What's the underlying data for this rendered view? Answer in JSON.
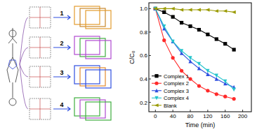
{
  "chart_data": {
    "type": "line",
    "xlabel": "Time (min)",
    "ylabel": "C/C₀",
    "x": [
      0,
      20,
      40,
      60,
      80,
      100,
      120,
      140,
      160,
      180
    ],
    "series": [
      {
        "name": "Complex 1",
        "color": "#000000",
        "marker": "square",
        "values": [
          1.0,
          0.97,
          0.93,
          0.88,
          0.85,
          0.82,
          0.78,
          0.74,
          0.7,
          0.65
        ]
      },
      {
        "name": "Complex 2",
        "color": "#ff2a2a",
        "marker": "circle",
        "values": [
          1.0,
          0.73,
          0.58,
          0.47,
          0.4,
          0.34,
          0.3,
          0.27,
          0.25,
          0.23
        ]
      },
      {
        "name": "Complex 3",
        "color": "#2f4fe0",
        "marker": "triangle-up",
        "values": [
          1.0,
          0.83,
          0.72,
          0.62,
          0.55,
          0.49,
          0.44,
          0.4,
          0.36,
          0.33
        ]
      },
      {
        "name": "Complex 4",
        "color": "#22c4cc",
        "marker": "triangle-down",
        "values": [
          1.0,
          0.85,
          0.72,
          0.64,
          0.58,
          0.53,
          0.47,
          0.43,
          0.38,
          0.31
        ]
      },
      {
        "name": "Blank",
        "color": "#9a9a00",
        "marker": "triangle-left",
        "values": [
          1.0,
          1.0,
          1.0,
          0.99,
          0.99,
          0.99,
          0.99,
          0.98,
          0.98,
          0.97
        ]
      }
    ],
    "xlim": [
      -15,
      220
    ],
    "xticks": [
      0,
      40,
      80,
      120,
      160,
      200
    ],
    "ylim": [
      0.12,
      1.05
    ],
    "yticks": [
      0.2,
      0.4,
      0.6,
      0.8,
      {
        "value": 1,
        "label": "1.0"
      }
    ],
    "grid": false,
    "legend": "lower left"
  },
  "diagram": {
    "labels": [
      "1",
      "2",
      "3",
      "4"
    ]
  }
}
